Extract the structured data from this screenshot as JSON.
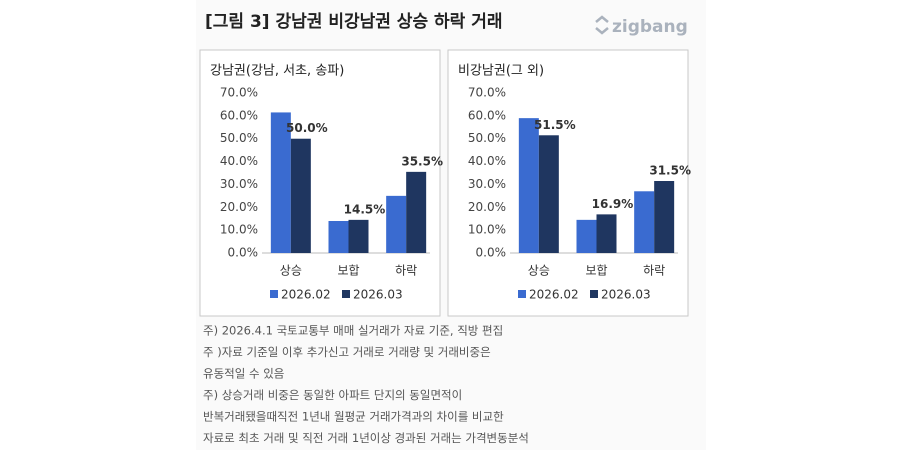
{
  "header": {
    "title": "[그림 3] 강남권 비강남권 상승 하락 거래",
    "logo": "zigbang"
  },
  "chart_data": [
    {
      "type": "bar",
      "title": "강남권(강남, 서초, 송파)",
      "categories": [
        "상승",
        "보합",
        "하락"
      ],
      "series": [
        {
          "name": "2026.02",
          "color": "#3a6bd0",
          "values": [
            61.5,
            14,
            25
          ]
        },
        {
          "name": "2026.03",
          "color": "#1f3660",
          "values": [
            50.0,
            14.5,
            35.5
          ],
          "value_labels": [
            "50.0%",
            "14.5%",
            "35.5%"
          ]
        }
      ],
      "ylim": [
        0,
        70
      ],
      "yticks": [
        {
          "value": 0,
          "label": "0.0%"
        },
        {
          "value": 10,
          "label": "10.0%"
        },
        {
          "value": 20,
          "label": "20.0%"
        },
        {
          "value": 30,
          "label": "30.0%"
        },
        {
          "value": 40,
          "label": "40.0%"
        },
        {
          "value": 50,
          "label": "50.0%"
        },
        {
          "value": 60,
          "label": "60.0%"
        },
        {
          "value": 70,
          "label": "70.0%"
        }
      ],
      "legend": "bottom"
    },
    {
      "type": "bar",
      "title": "비강남권(그 외)",
      "categories": [
        "상승",
        "보합",
        "하락"
      ],
      "series": [
        {
          "name": "2026.02",
          "color": "#3a6bd0",
          "values": [
            59,
            14.5,
            27
          ]
        },
        {
          "name": "2026.03",
          "color": "#1f3660",
          "values": [
            51.5,
            16.9,
            31.5
          ],
          "value_labels": [
            "51.5%",
            "16.9%",
            "31.5%"
          ]
        }
      ],
      "ylim": [
        0,
        70
      ],
      "yticks": [
        {
          "value": 0,
          "label": "0.0%"
        },
        {
          "value": 10,
          "label": "10.0%"
        },
        {
          "value": 20,
          "label": "20.0%"
        },
        {
          "value": 30,
          "label": "30.0%"
        },
        {
          "value": 40,
          "label": "40.0%"
        },
        {
          "value": 50,
          "label": "50.0%"
        },
        {
          "value": 60,
          "label": "60.0%"
        },
        {
          "value": 70,
          "label": "70.0%"
        }
      ],
      "legend": "bottom"
    }
  ],
  "notes": [
    "주) 2026.4.1 국토교통부 매매 실거래가 자료 기준, 직방 편집",
    "주 )자료 기준일 이후 추가신고 거래로 거래량 및 거래비중은",
    "유동적일 수 있음",
    "주) 상승거래 비중은 동일한 아파트 단지의 동일면적이",
    "반복거래됐을때직전 1년내 월평균 거래가격과의 차이를 비교한",
    "자료로 최초 거래 및 직전 거래 1년이상 경과된 거래는 가격변동분석"
  ]
}
